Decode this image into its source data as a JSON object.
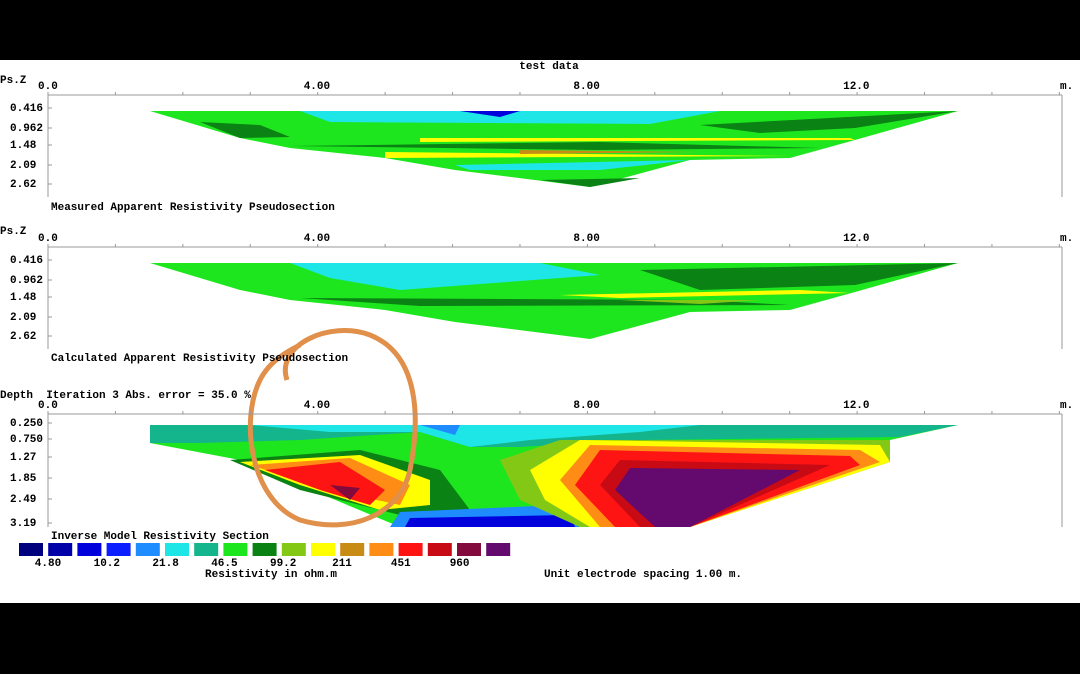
{
  "title": "test data",
  "panels": [
    {
      "axis_label": "Ps.Z",
      "x_ticks": [
        "0.0",
        "4.00",
        "8.00",
        "12.0"
      ],
      "x_unit": "m.",
      "depth_ticks": [
        "0.416",
        "0.962",
        "1.48",
        "2.09",
        "2.62"
      ],
      "caption": "Measured Apparent Resistivity Pseudosection"
    },
    {
      "axis_label": "Ps.Z",
      "x_ticks": [
        "0.0",
        "4.00",
        "8.00",
        "12.0"
      ],
      "x_unit": "m.",
      "depth_ticks": [
        "0.416",
        "0.962",
        "1.48",
        "2.09",
        "2.62"
      ],
      "caption": "Calculated Apparent Resistivity Pseudosection"
    },
    {
      "axis_label": "Depth  Iteration 3 Abs. error = 35.0 %",
      "x_ticks": [
        "0.0",
        "4.00",
        "8.00",
        "12.0"
      ],
      "x_unit": "m.",
      "depth_ticks": [
        "0.250",
        "0.750",
        "1.27",
        "1.85",
        "2.49",
        "3.19"
      ],
      "caption": "Inverse Model Resistivity Section"
    }
  ],
  "legend": {
    "colors": [
      "#00007f",
      "#0000a8",
      "#0000dc",
      "#0a1eff",
      "#1e8cff",
      "#1ee6e6",
      "#14b48c",
      "#1ee61e",
      "#0a8214",
      "#82c814",
      "#ffff00",
      "#c88c14",
      "#ff8c14",
      "#ff1414",
      "#c80a14",
      "#820a3c",
      "#640a6e"
    ],
    "labels": [
      "4.80",
      "10.2",
      "21.8",
      "46.5",
      "99.2",
      "211",
      "451",
      "960"
    ],
    "unit_label": "Resistivity in ohm.m"
  },
  "footer_note": "Unit electrode spacing 1.00 m."
}
